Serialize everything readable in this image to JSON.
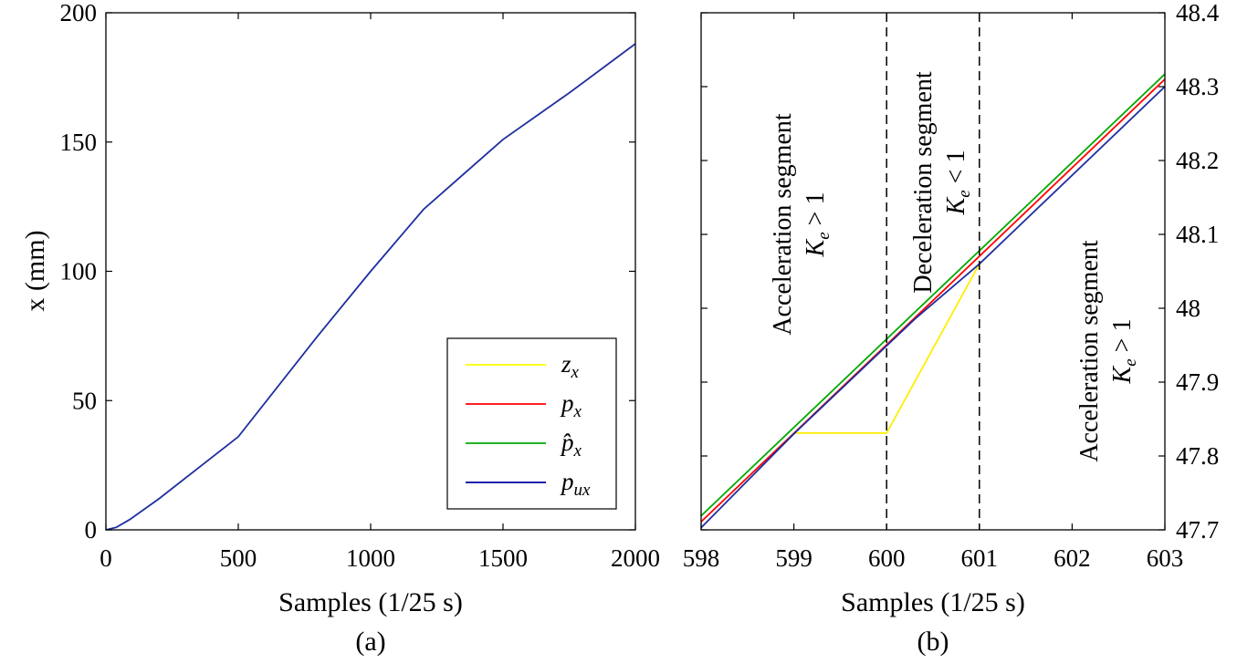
{
  "chart_data": [
    {
      "panel": "(a)",
      "type": "line",
      "xlabel": "Samples (1/25 s)",
      "ylabel": "x (mm)",
      "xlim": [
        0,
        2000
      ],
      "ylim": [
        0,
        200
      ],
      "xticks": [
        0,
        500,
        1000,
        1500,
        2000
      ],
      "yticks": [
        0,
        50,
        100,
        150,
        200
      ],
      "legend": {
        "placement": "bottom-right",
        "entries": [
          {
            "label": "z_x",
            "html": "<tspan>z</tspan><tspan font-size='19' dy='6'>x</tspan>",
            "color": "#ffff00"
          },
          {
            "label": "p_x",
            "html": "<tspan>p</tspan><tspan font-size='19' dy='6'>x</tspan>",
            "color": "#ff0000"
          },
          {
            "label": "p̂_x",
            "html": "<tspan>p̂</tspan><tspan font-size='19' dy='6'>x</tspan>",
            "color": "#00aa00"
          },
          {
            "label": "p_ux",
            "html": "<tspan>p</tspan><tspan font-size='19' dy='6'>ux</tspan>",
            "color": "#0000a0"
          }
        ]
      },
      "series": [
        {
          "name": "p_ux",
          "color": "#1f2f9f",
          "x": [
            0,
            40,
            90,
            200,
            500,
            800,
            1000,
            1200,
            1500,
            1750,
            2000
          ],
          "y": [
            0,
            1,
            4,
            12,
            36,
            75,
            100,
            124,
            151,
            169,
            188
          ]
        }
      ]
    },
    {
      "panel": "(b)",
      "type": "line",
      "xlabel": "Samples (1/25 s)",
      "ylabel": "",
      "xlim": [
        598,
        603
      ],
      "ylim": [
        47.7,
        48.4
      ],
      "yaxis_side": "right",
      "xticks": [
        598,
        599,
        600,
        601,
        602,
        603
      ],
      "yticks": [
        47.7,
        47.8,
        47.9,
        48,
        48.1,
        48.2,
        48.3,
        48.4
      ],
      "ytick_labels": [
        "47.7",
        "47.8",
        "47.9",
        "48",
        "48.1",
        "48.2",
        "48.3",
        "48.4"
      ],
      "vlines": [
        600,
        601
      ],
      "series": [
        {
          "name": "z_x",
          "color": "#ffee00",
          "x": [
            599,
            600,
            601
          ],
          "y": [
            47.831,
            47.831,
            48.06
          ]
        },
        {
          "name": "p̂_x",
          "color": "#00aa00",
          "x": [
            598,
            603
          ],
          "y": [
            47.719,
            48.317
          ]
        },
        {
          "name": "p_x",
          "color": "#ff0000",
          "x": [
            598,
            603
          ],
          "y": [
            47.711,
            48.31
          ]
        },
        {
          "name": "p_ux",
          "color": "#1f2f9f",
          "x": [
            598,
            599,
            600.3,
            601,
            603
          ],
          "y": [
            47.703,
            47.83,
            47.985,
            48.06,
            48.3
          ]
        }
      ],
      "annotations": [
        {
          "lines": [
            "Acceleration segment",
            "K_e > 1"
          ]
        },
        {
          "lines": [
            "Deceleration  segment",
            "K_e < 1"
          ]
        },
        {
          "lines": [
            "Acceleration segment",
            "K_e > 1"
          ]
        }
      ]
    }
  ],
  "annot_text": {
    "seg1_title": "Acceleration segment",
    "seg1_cond": "K_e > 1",
    "seg2_title": "Deceleration  segment",
    "seg2_cond": "K_e < 1",
    "seg3_title": "Acceleration segment",
    "seg3_cond": "K_e > 1"
  },
  "panel_labels": {
    "a": "(a)",
    "b": "(b)"
  }
}
